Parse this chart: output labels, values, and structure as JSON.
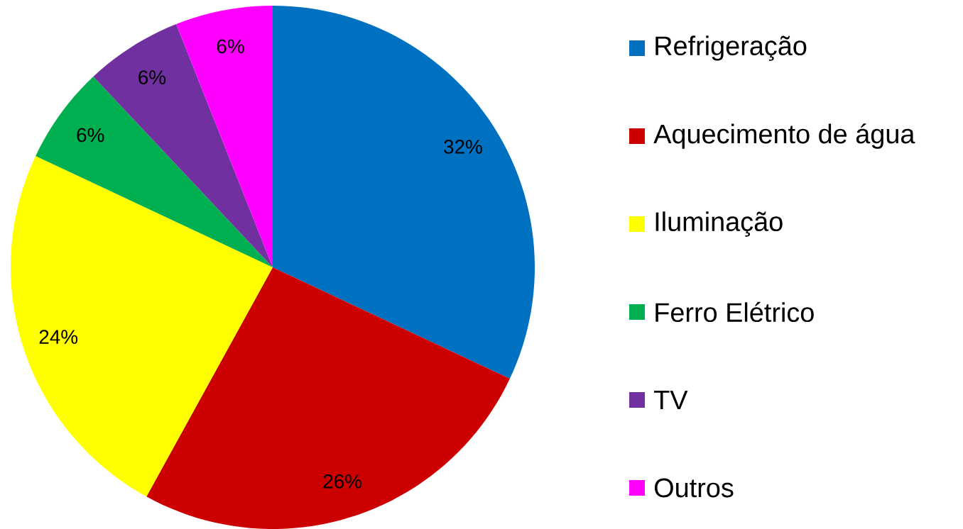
{
  "chart_data": {
    "type": "pie",
    "categories": [
      "Refrigeração",
      "Aquecimento de água",
      "Iluminação",
      "Ferro Elétrico",
      "TV",
      "Outros"
    ],
    "values": [
      32,
      26,
      24,
      6,
      6,
      6
    ],
    "value_labels": [
      "32%",
      "26%",
      "24%",
      "6%",
      "6%",
      "6%"
    ],
    "colors": [
      "#0070c0",
      "#cc0000",
      "#ffff00",
      "#00b050",
      "#7030a0",
      "#ff00ff"
    ],
    "legend": "right"
  }
}
